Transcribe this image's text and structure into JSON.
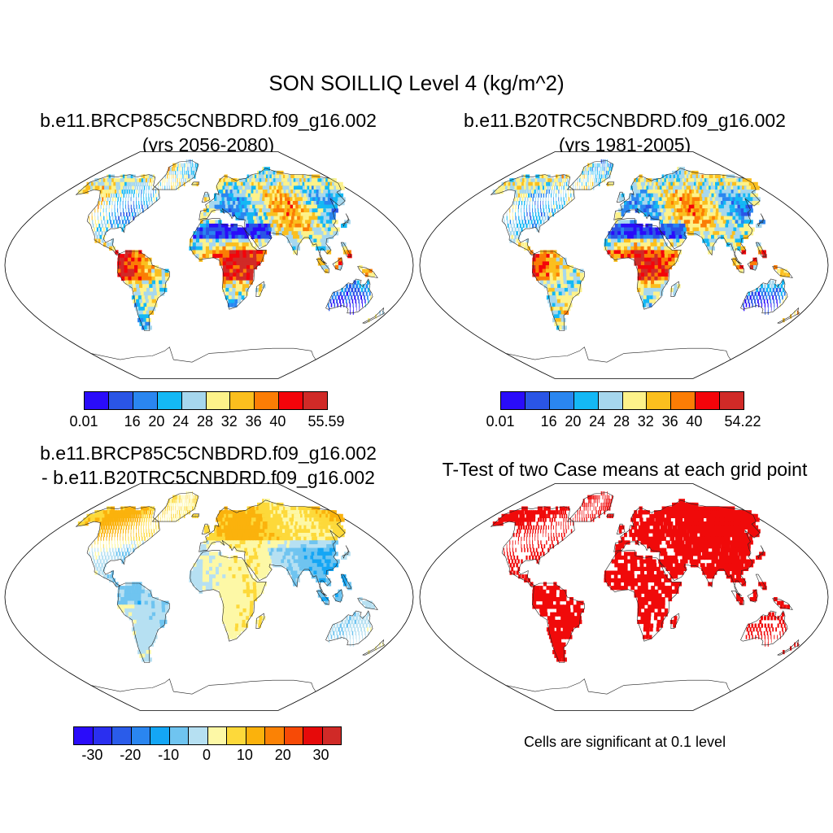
{
  "title": "SON SOILLIQ Level 4 (kg/m^2)",
  "panels": [
    {
      "id": "future",
      "title_line1": "b.e11.BRCP85C5CNBDRD.f09_g16.002",
      "title_line2": "(yrs 2056-2080)",
      "colorbar": {
        "colors": [
          "#2a0cfa",
          "#2a55e6",
          "#2a86f0",
          "#14b8f5",
          "#a6d7ee",
          "#fdf28a",
          "#fbbf1e",
          "#fb7d05",
          "#f4040a",
          "#d02a27"
        ],
        "labels": [
          "0.01",
          "16",
          "20",
          "24",
          "28",
          "32",
          "36",
          "40",
          "55.59"
        ]
      }
    },
    {
      "id": "historical",
      "title_line1": "b.e11.B20TRC5CNBDRD.f09_g16.002",
      "title_line2": "(yrs 1981-2005)",
      "colorbar": {
        "colors": [
          "#2a0cfa",
          "#2a55e6",
          "#2a86f0",
          "#14b8f5",
          "#a6d7ee",
          "#fdf28a",
          "#fbbf1e",
          "#fb7d05",
          "#f4040a",
          "#d02a27"
        ],
        "labels": [
          "0.01",
          "16",
          "20",
          "24",
          "28",
          "32",
          "36",
          "40",
          "54.22"
        ]
      }
    },
    {
      "id": "difference",
      "title_line1": "b.e11.BRCP85C5CNBDRD.f09_g16.002",
      "title_line2": "- b.e11.B20TRC5CNBDRD.f09_g16.002",
      "colorbar": {
        "colors": [
          "#2a0cfa",
          "#2a2ff0",
          "#2a5cea",
          "#2a86f0",
          "#14a6f5",
          "#6fc4f0",
          "#b6e0f2",
          "#fdf8a6",
          "#fdd93a",
          "#fbb20c",
          "#fb8205",
          "#f74a06",
          "#e60a0a",
          "#d02a27"
        ],
        "labels": [
          "-30",
          "-20",
          "-10",
          "0",
          "10",
          "20",
          "30"
        ]
      }
    },
    {
      "id": "ttest",
      "title_line1": "T-Test of two Case means at each grid point",
      "note": "Cells are significant at 0.1 level",
      "sig_color": "#f00a0a"
    }
  ]
}
